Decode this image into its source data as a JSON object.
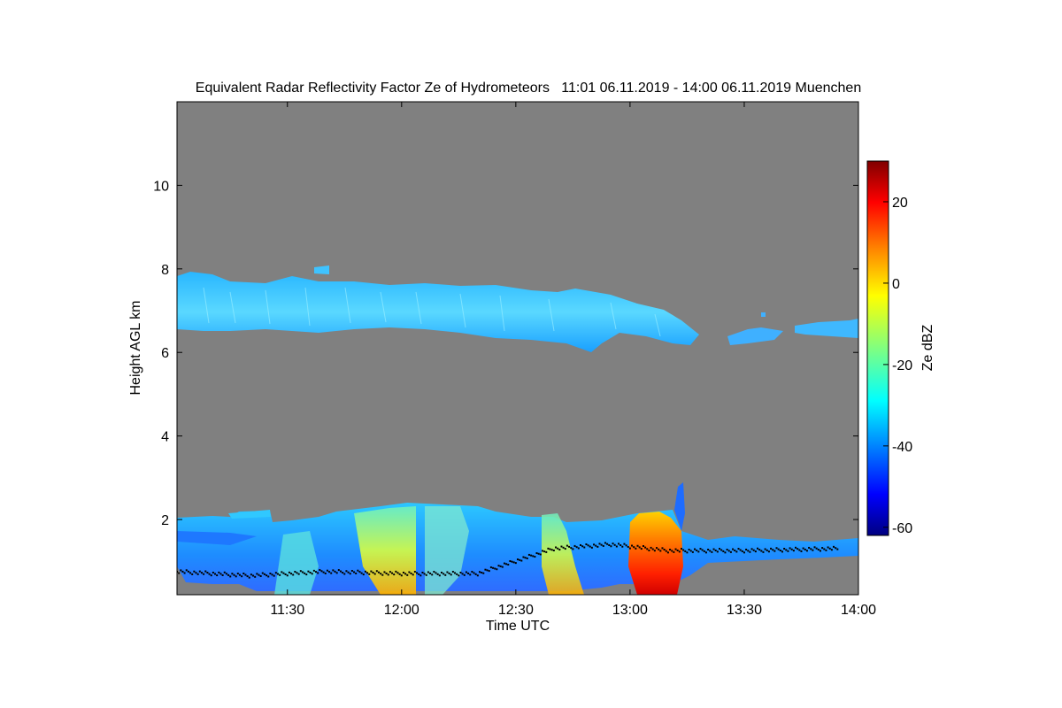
{
  "chart_data": {
    "type": "heatmap",
    "title": "Equivalent Radar Reflectivity Factor Ze of Hydrometeors   11:01 06.11.2019 - 14:00 06.11.2019 Muenchen",
    "xlabel": "Time UTC",
    "ylabel": "Height AGL km",
    "colorbar_label": "Ze dBZ",
    "background_color": "#808080",
    "xlim": [
      "11:01",
      "14:00"
    ],
    "x_ticks": [
      "11:30",
      "12:00",
      "12:30",
      "13:00",
      "13:30",
      "14:00"
    ],
    "ylim": [
      0.2,
      12.0
    ],
    "y_ticks": [
      2,
      4,
      6,
      8,
      10
    ],
    "colorbar_lim": [
      -62,
      30
    ],
    "colorbar_ticks": [
      20,
      0,
      -20,
      -40,
      -60
    ],
    "colormap": [
      "#000080",
      "#0000ff",
      "#0080ff",
      "#00ffff",
      "#80ff80",
      "#ffff00",
      "#ff8000",
      "#ff0000",
      "#800000"
    ],
    "grid": false,
    "regions": [
      {
        "name": "upper cirrus layer",
        "time_start": "11:01",
        "time_end": "13:46",
        "base_km": [
          6.5,
          6.6,
          6.5,
          6.3,
          6.0,
          6.4,
          6.2
        ],
        "top_km": [
          7.9,
          7.7,
          7.6,
          7.6,
          7.5,
          7.0,
          6.8
        ],
        "dbz": -30
      },
      {
        "name": "upper cloud fragments",
        "time_start": "13:47",
        "time_end": "14:00",
        "base_km": [
          6.3,
          6.4,
          6.3
        ],
        "top_km": [
          6.6,
          6.7,
          6.7
        ],
        "dbz": -28
      },
      {
        "name": "low cloud band",
        "time_start": "11:01",
        "time_end": "14:00",
        "base_km": [
          0.3,
          0.3,
          0.3
        ],
        "top_km": [
          2.1,
          2.3,
          1.5
        ],
        "dbz": -35
      },
      {
        "name": "rain shaft 11:55",
        "time_start": "11:50",
        "time_end": "12:05",
        "base_km": [
          0.2
        ],
        "top_km": [
          2.3
        ],
        "dbz": 0
      },
      {
        "name": "rain shaft 12:45",
        "time_start": "12:40",
        "time_end": "12:50",
        "base_km": [
          0.2
        ],
        "top_km": [
          2.0
        ],
        "dbz": -5
      },
      {
        "name": "strong rain 13:05",
        "time_start": "12:59",
        "time_end": "13:12",
        "base_km": [
          0.2
        ],
        "top_km": [
          2.4
        ],
        "dbz": 20
      }
    ],
    "cloud_base_km": [
      {
        "time": "11:01",
        "height": 0.75
      },
      {
        "time": "11:20",
        "height": 0.65
      },
      {
        "time": "11:40",
        "height": 0.75
      },
      {
        "time": "12:00",
        "height": 0.7
      },
      {
        "time": "12:20",
        "height": 0.7
      },
      {
        "time": "12:40",
        "height": 1.3
      },
      {
        "time": "12:55",
        "height": 1.4
      },
      {
        "time": "13:10",
        "height": 1.25
      },
      {
        "time": "13:30",
        "height": 1.25
      },
      {
        "time": "13:55",
        "height": 1.3
      }
    ]
  }
}
